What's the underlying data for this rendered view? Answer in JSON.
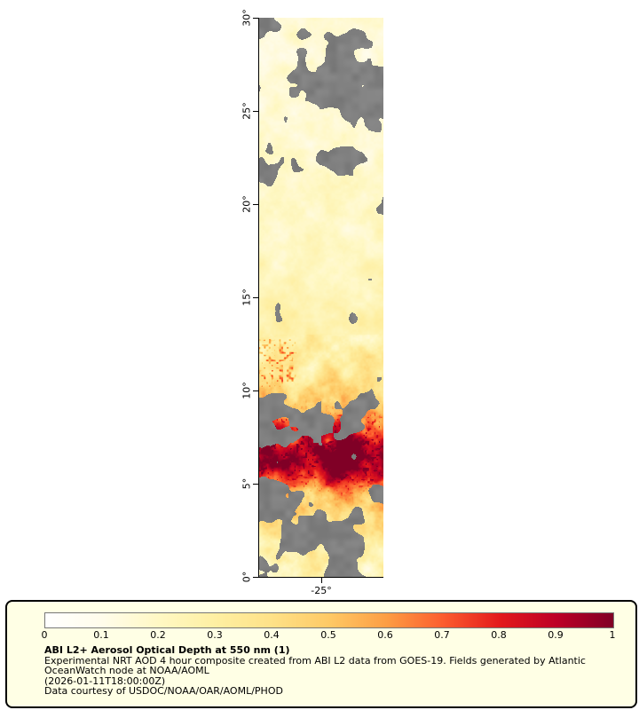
{
  "map": {
    "lat_axis": {
      "range": [
        0,
        30
      ],
      "ticks": [
        {
          "label": "30°",
          "value": 30
        },
        {
          "label": "25°",
          "value": 25
        },
        {
          "label": "20°",
          "value": 20
        },
        {
          "label": "15°",
          "value": 15
        },
        {
          "label": "10°",
          "value": 10
        },
        {
          "label": "5°",
          "value": 5
        },
        {
          "label": "0°",
          "value": 0
        }
      ]
    },
    "lon_axis": {
      "ticks": [
        {
          "label": "-25°",
          "frac": 0.5
        }
      ]
    },
    "missing_data_color": "#7f7f7f"
  },
  "aod_field": {
    "lat_profile": [
      {
        "lat": 30,
        "aod": 0.15,
        "cloud": 0.45
      },
      {
        "lat": 28,
        "aod": 0.15,
        "cloud": 0.55
      },
      {
        "lat": 26,
        "aod": 0.16,
        "cloud": 0.5
      },
      {
        "lat": 24,
        "aod": 0.17,
        "cloud": 0.5
      },
      {
        "lat": 22,
        "aod": 0.18,
        "cloud": 0.35
      },
      {
        "lat": 20,
        "aod": 0.18,
        "cloud": 0.3
      },
      {
        "lat": 18,
        "aod": 0.2,
        "cloud": 0.15
      },
      {
        "lat": 16,
        "aod": 0.22,
        "cloud": 0.08
      },
      {
        "lat": 14,
        "aod": 0.25,
        "cloud": 0.05
      },
      {
        "lat": 12,
        "aod": 0.3,
        "cloud": 0.05
      },
      {
        "lat": 11,
        "aod": 0.35,
        "cloud": 0.08
      },
      {
        "lat": 10,
        "aod": 0.45,
        "cloud": 0.2
      },
      {
        "lat": 9,
        "aod": 0.55,
        "cloud": 0.35
      },
      {
        "lat": 8,
        "aod": 0.75,
        "cloud": 0.25
      },
      {
        "lat": 7,
        "aod": 0.9,
        "cloud": 0.2
      },
      {
        "lat": 6,
        "aod": 0.85,
        "cloud": 0.3
      },
      {
        "lat": 5,
        "aod": 0.65,
        "cloud": 0.45
      },
      {
        "lat": 4,
        "aod": 0.55,
        "cloud": 0.5
      },
      {
        "lat": 3,
        "aod": 0.4,
        "cloud": 0.55
      },
      {
        "lat": 2,
        "aod": 0.3,
        "cloud": 0.5
      },
      {
        "lat": 1,
        "aod": 0.28,
        "cloud": 0.45
      },
      {
        "lat": 0,
        "aod": 0.22,
        "cloud": 0.5
      }
    ]
  },
  "colorbar": {
    "tick_labels": [
      "0",
      "0.1",
      "0.2",
      "0.3",
      "0.4",
      "0.5",
      "0.6",
      "0.7",
      "0.8",
      "0.9",
      "1"
    ],
    "stops": [
      {
        "t": 0.0,
        "color": "#ffffff"
      },
      {
        "t": 0.1,
        "color": "#fffceb"
      },
      {
        "t": 0.2,
        "color": "#fff8c4"
      },
      {
        "t": 0.3,
        "color": "#feefa2"
      },
      {
        "t": 0.4,
        "color": "#fee187"
      },
      {
        "t": 0.5,
        "color": "#fec965"
      },
      {
        "t": 0.6,
        "color": "#fd9e44"
      },
      {
        "t": 0.7,
        "color": "#fc5d2e"
      },
      {
        "t": 0.8,
        "color": "#e31a1c"
      },
      {
        "t": 0.9,
        "color": "#bd0026"
      },
      {
        "t": 1.0,
        "color": "#800026"
      }
    ]
  },
  "legend": {
    "title": "ABI L2+ Aerosol Optical Depth at 550 nm (1)",
    "lines": [
      "Experimental NRT AOD 4 hour composite created from ABI L2 data from GOES-19. Fields generated by Atlantic",
      "OceanWatch node at NOAA/AOML",
      "(2026-01-11T18:00:00Z)",
      "Data courtesy of USDOC/NOAA/OAR/AOML/PHOD"
    ],
    "background_color": "#ffffe5",
    "border_color": "#000000"
  }
}
